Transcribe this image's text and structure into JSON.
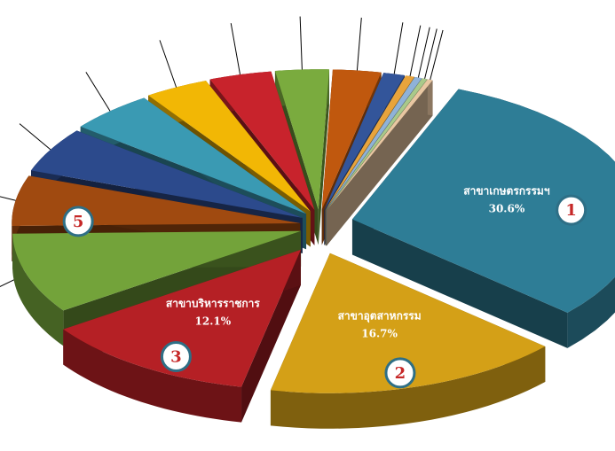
{
  "chart_data": {
    "type": "pie",
    "style": "exploded 3D pie",
    "legend": "none",
    "slices": [
      {
        "rank": "1",
        "label": "สาขาเกษตรกรรมฯ",
        "percent_text": "30.6%",
        "value": 30.6,
        "color": "#2e7d96"
      },
      {
        "rank": "2",
        "label": "สาขาอุตสาหกรรม",
        "percent_text": "16.7%",
        "value": 16.7,
        "color": "#d4a017"
      },
      {
        "rank": "3",
        "label": "สาขาบริหารราชการ",
        "percent_text": "12.1%",
        "value": 12.1,
        "color": "#b52025"
      },
      {
        "rank": "",
        "label": "",
        "percent_text": "",
        "value": 9.3,
        "color": "#73a33a"
      },
      {
        "rank": "5",
        "label": "",
        "percent_text": "",
        "value": 5.8,
        "color": "#a04a10"
      },
      {
        "rank": "",
        "label": "",
        "percent_text": "",
        "value": 5.2,
        "color": "#2c4a8c"
      },
      {
        "rank": "",
        "label": "",
        "percent_text": "",
        "value": 4.8,
        "color": "#3a9ab3"
      },
      {
        "rank": "",
        "label": "",
        "percent_text": "",
        "value": 3.6,
        "color": "#f2b705"
      },
      {
        "rank": "",
        "label": "",
        "percent_text": "",
        "value": 3.5,
        "color": "#c8232c"
      },
      {
        "rank": "",
        "label": "",
        "percent_text": "",
        "value": 3.0,
        "color": "#7aab3e"
      },
      {
        "rank": "",
        "label": "",
        "percent_text": "",
        "value": 2.7,
        "color": "#c0580e"
      },
      {
        "rank": "",
        "label": "",
        "percent_text": "",
        "value": 1.2,
        "color": "#33559a"
      },
      {
        "rank": "",
        "label": "",
        "percent_text": "",
        "value": 0.5,
        "color": "#e8a43c"
      },
      {
        "rank": "",
        "label": "",
        "percent_text": "",
        "value": 0.4,
        "color": "#8fb2d8"
      },
      {
        "rank": "",
        "label": "",
        "percent_text": "",
        "value": 0.3,
        "color": "#a9c98a"
      },
      {
        "rank": "",
        "label": "",
        "percent_text": "",
        "value": 0.3,
        "color": "#e9c7a2"
      }
    ]
  }
}
